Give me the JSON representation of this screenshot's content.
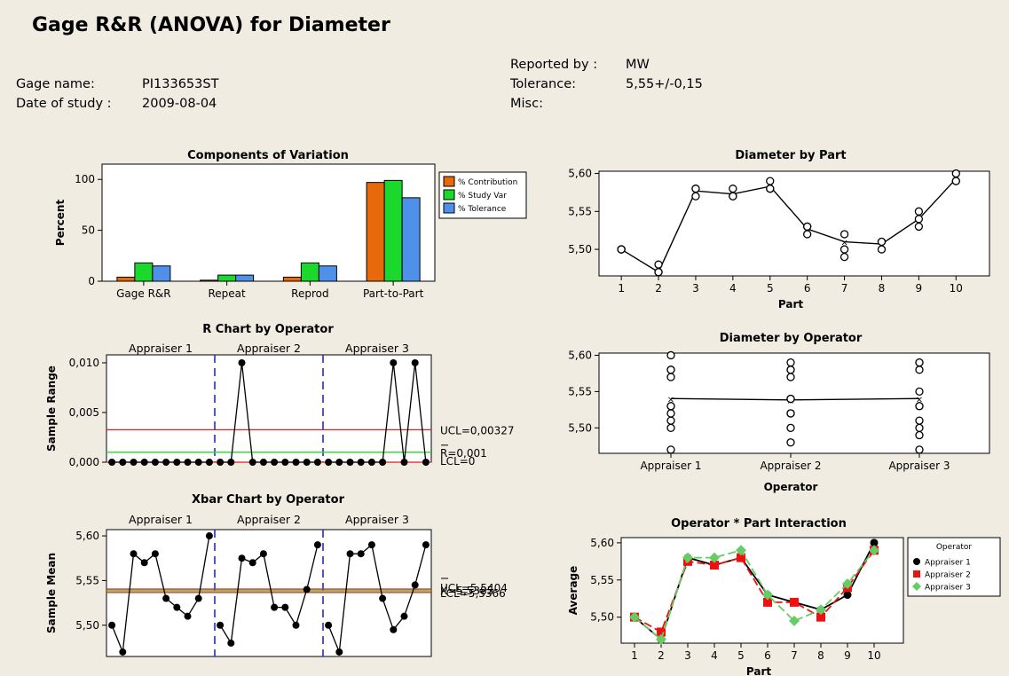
{
  "title": "Gage R&R (ANOVA) for Diameter",
  "header": {
    "gage_name_label": "Gage name:",
    "gage_name": "PI133653ST",
    "date_label": "Date of study :",
    "date": "2009-08-04",
    "reported_by_label": "Reported by :",
    "reported_by": "MW",
    "tolerance_label": "Tolerance:",
    "tolerance": "5,55+/-0,15",
    "misc_label": "Misc:"
  },
  "chart_data": [
    {
      "id": "components",
      "type": "bar",
      "title": "Components of Variation",
      "ylabel": "Percent",
      "xlabel": "",
      "categories": [
        "Gage R&R",
        "Repeat",
        "Reprod",
        "Part-to-Part"
      ],
      "series": [
        {
          "name": "% Contribution",
          "color": "#e8690c",
          "values": [
            4,
            1,
            4,
            97
          ]
        },
        {
          "name": "% Study Var",
          "color": "#1ad92c",
          "values": [
            18,
            6,
            18,
            99
          ]
        },
        {
          "name": "% Tolerance",
          "color": "#4f91ea",
          "values": [
            15,
            6,
            15,
            82
          ]
        }
      ],
      "ylim": [
        0,
        115
      ],
      "yticks": [
        "0",
        "50",
        "100"
      ],
      "legend_position": "right"
    },
    {
      "id": "r_chart",
      "type": "line",
      "title": "R Chart by Operator",
      "ylabel": "Sample Range",
      "groups": [
        "Appraiser 1",
        "Appraiser 2",
        "Appraiser 3"
      ],
      "values": [
        0,
        0,
        0,
        0,
        0,
        0,
        0,
        0,
        0,
        0,
        0,
        0,
        0.01,
        0,
        0,
        0,
        0,
        0,
        0,
        0,
        0,
        0,
        0,
        0,
        0,
        0,
        0.01,
        0,
        0.01,
        0
      ],
      "ylim": [
        0,
        0.0108
      ],
      "yticks": [
        "0,000",
        "0,005",
        "0,010"
      ],
      "ucl": 0.00327,
      "rbar": 0.001,
      "lcl": 0,
      "ucl_label": "UCL=0,00327",
      "rbar_label": "R=0,001",
      "lcl_label": "LCL=0"
    },
    {
      "id": "xbar_chart",
      "type": "line",
      "title": "Xbar Chart by Operator",
      "ylabel": "Sample Mean",
      "groups": [
        "Appraiser 1",
        "Appraiser 2",
        "Appraiser 3"
      ],
      "values": [
        5.5,
        5.47,
        5.58,
        5.57,
        5.58,
        5.53,
        5.52,
        5.51,
        5.53,
        5.6,
        5.5,
        5.48,
        5.575,
        5.57,
        5.58,
        5.52,
        5.52,
        5.5,
        5.54,
        5.59,
        5.5,
        5.47,
        5.58,
        5.58,
        5.59,
        5.53,
        5.495,
        5.51,
        5.545,
        5.59
      ],
      "ylim": [
        5.465,
        5.607
      ],
      "yticks": [
        "5,50",
        "5,55",
        "5,60"
      ],
      "ucl": 5.5404,
      "mean": 5.5385,
      "lcl": 5.5366,
      "limit_labels": "UCL=5,5404 X=5,5385 LCL=5,5366"
    },
    {
      "id": "by_part",
      "type": "scatter",
      "title": "Diameter by Part",
      "xlabel": "Part",
      "categories": [
        "1",
        "2",
        "3",
        "4",
        "5",
        "6",
        "7",
        "8",
        "9",
        "10"
      ],
      "points": [
        [
          5.5,
          5.5,
          5.5
        ],
        [
          5.47,
          5.48,
          5.47
        ],
        [
          5.58,
          5.58,
          5.57
        ],
        [
          5.57,
          5.58,
          5.57
        ],
        [
          5.58,
          5.59,
          5.58
        ],
        [
          5.52,
          5.53,
          5.53
        ],
        [
          5.49,
          5.5,
          5.52
        ],
        [
          5.5,
          5.51,
          5.51
        ],
        [
          5.53,
          5.54,
          5.55
        ],
        [
          5.6,
          5.59,
          5.59
        ]
      ],
      "means": [
        5.5,
        5.47,
        5.577,
        5.573,
        5.583,
        5.527,
        5.51,
        5.507,
        5.54,
        5.593
      ],
      "ylim": [
        5.465,
        5.603
      ],
      "yticks": [
        "5,50",
        "5,55",
        "5,60"
      ]
    },
    {
      "id": "by_operator",
      "type": "scatter",
      "title": "Diameter by Operator",
      "xlabel": "Operator",
      "categories": [
        "Appraiser 1",
        "Appraiser 2",
        "Appraiser 3"
      ],
      "points": [
        [
          5.47,
          5.5,
          5.51,
          5.52,
          5.53,
          5.53,
          5.57,
          5.58,
          5.58,
          5.6
        ],
        [
          5.48,
          5.5,
          5.52,
          5.52,
          5.54,
          5.54,
          5.57,
          5.58,
          5.58,
          5.59
        ],
        [
          5.47,
          5.49,
          5.5,
          5.51,
          5.53,
          5.53,
          5.55,
          5.58,
          5.59,
          5.59
        ]
      ],
      "means": [
        5.5404,
        5.5385,
        5.5404
      ],
      "ylim": [
        5.465,
        5.603
      ],
      "yticks": [
        "5,50",
        "5,55",
        "5,60"
      ]
    },
    {
      "id": "interaction",
      "type": "line",
      "title": "Operator * Part Interaction",
      "ylabel": "Average",
      "xlabel": "Part",
      "categories": [
        "1",
        "2",
        "3",
        "4",
        "5",
        "6",
        "7",
        "8",
        "9",
        "10"
      ],
      "legend_title": "Operator",
      "series": [
        {
          "name": "Appraiser 1",
          "color": "#000000",
          "values": [
            5.5,
            5.47,
            5.58,
            5.57,
            5.58,
            5.53,
            5.52,
            5.51,
            5.53,
            5.6
          ]
        },
        {
          "name": "Appraiser 2",
          "color": "#ee1111",
          "values": [
            5.5,
            5.48,
            5.575,
            5.57,
            5.58,
            5.52,
            5.52,
            5.5,
            5.54,
            5.59
          ]
        },
        {
          "name": "Appraiser 3",
          "color": "#66cc66",
          "values": [
            5.5,
            5.47,
            5.58,
            5.58,
            5.59,
            5.53,
            5.495,
            5.51,
            5.545,
            5.59
          ]
        }
      ],
      "ylim": [
        5.465,
        5.607
      ],
      "yticks": [
        "5,50",
        "5,55",
        "5,60"
      ]
    }
  ]
}
